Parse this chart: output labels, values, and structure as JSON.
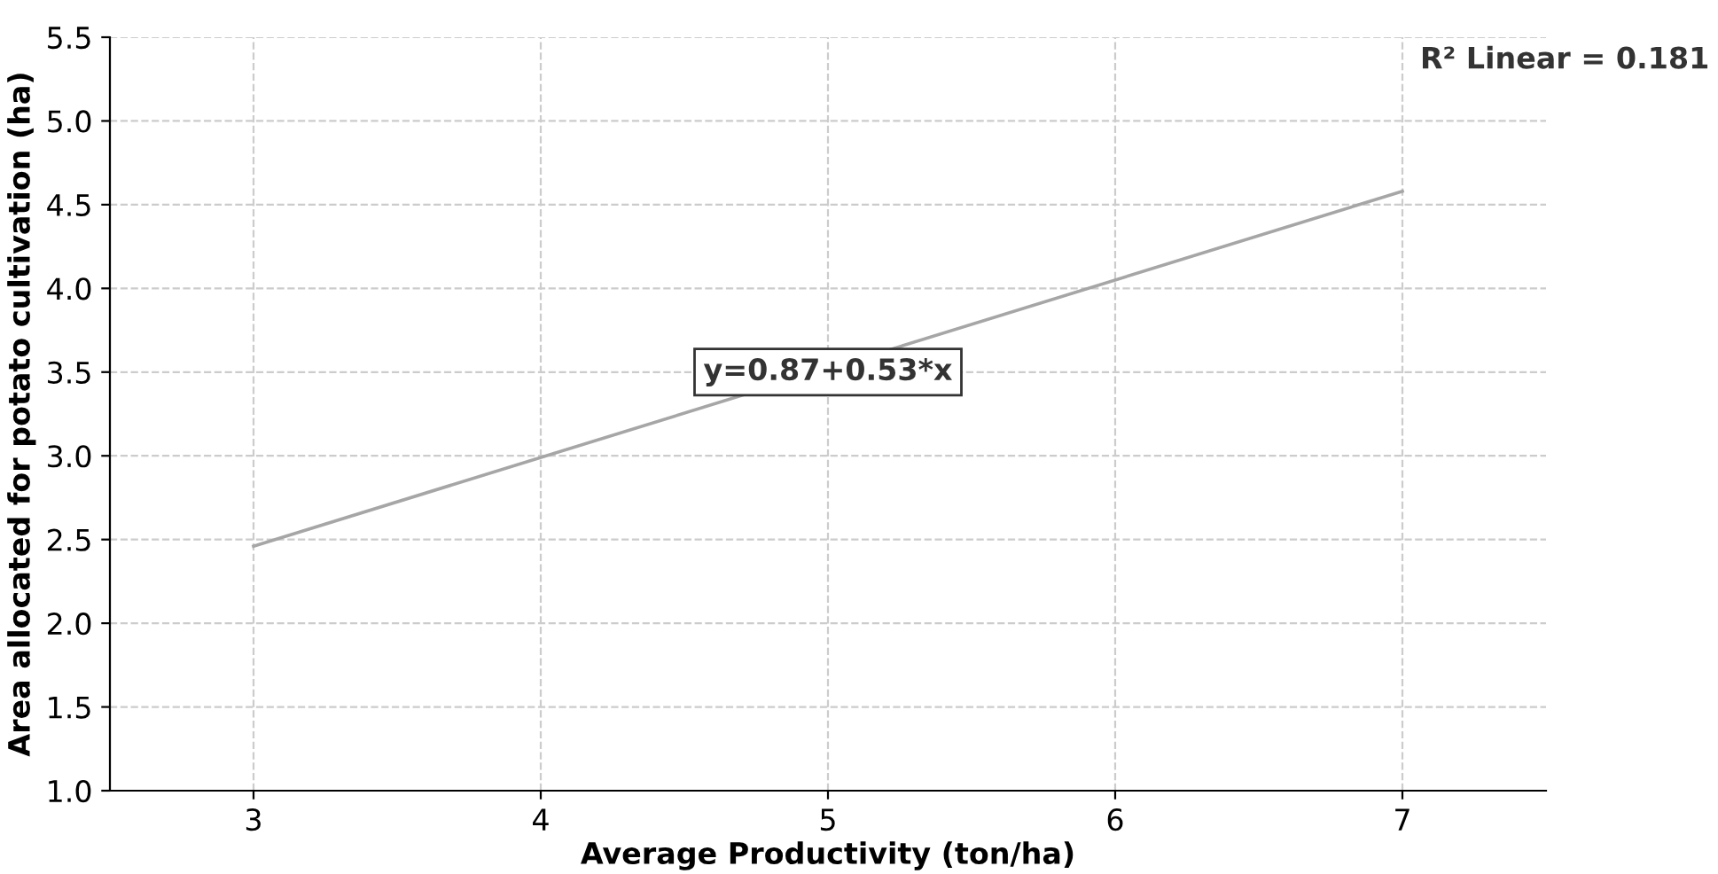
{
  "chart_data": {
    "type": "line",
    "xlabel": "Average Productivity (ton/ha)",
    "ylabel": "Area allocated for potato cultivation (ha)",
    "series": [
      {
        "color": "#a6a6a6",
        "x": [
          3,
          7
        ],
        "values": [
          2.46,
          4.58
        ]
      }
    ],
    "xlim": [
      2.5,
      7.5
    ],
    "xticks": [
      3,
      4,
      5,
      6,
      7
    ],
    "ylim": [
      1.0,
      5.5
    ],
    "yticks": [
      {
        "value": 1.0,
        "label": "1.0"
      },
      {
        "value": 1.5,
        "label": "1.5"
      },
      {
        "value": 2.0,
        "label": "2.0"
      },
      {
        "value": 2.5,
        "label": "2.5"
      },
      {
        "value": 3.0,
        "label": "3.0"
      },
      {
        "value": 3.5,
        "label": "3.5"
      },
      {
        "value": 4.0,
        "label": "4.0"
      },
      {
        "value": 4.5,
        "label": "4.5"
      },
      {
        "value": 5.0,
        "label": "5.0"
      },
      {
        "value": 5.5,
        "label": "5.5"
      }
    ],
    "grid": true,
    "marker": "none",
    "line_style": "solid",
    "legend": false,
    "annotations": [
      {
        "text": "y=0.87+0.53*x",
        "x": 5.0,
        "y": 3.5
      },
      "R² Linear = 0.181"
    ]
  }
}
